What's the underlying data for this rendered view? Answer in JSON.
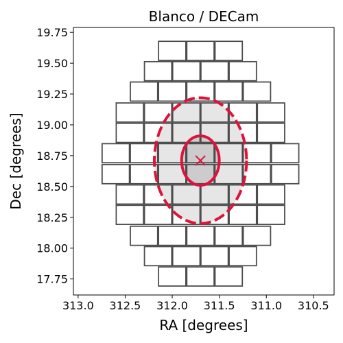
{
  "chart_data": {
    "type": "scatter",
    "title": "Blanco / DECam",
    "xlabel": "RA [degrees]",
    "ylabel": "Dec [degrees]",
    "xlim": [
      313.05,
      310.28
    ],
    "ylim": [
      17.62,
      19.79
    ],
    "x_ticks": [
      "313.0",
      "312.5",
      "312.0",
      "311.5",
      "311.0",
      "310.5"
    ],
    "x_tick_values": [
      313.0,
      312.5,
      312.0,
      311.5,
      311.0,
      310.5
    ],
    "y_ticks": [
      "17.75",
      "18.00",
      "18.25",
      "18.50",
      "18.75",
      "19.00",
      "19.25",
      "19.50",
      "19.75"
    ],
    "y_tick_values": [
      17.75,
      18.0,
      18.25,
      18.5,
      18.75,
      19.0,
      19.25,
      19.5,
      19.75
    ],
    "grid": false,
    "ccd_rows": [
      {
        "dec": 19.6,
        "ra_centers": [
          312.0,
          311.7,
          311.4
        ]
      },
      {
        "dec": 19.435,
        "ra_centers": [
          312.15,
          311.85,
          311.55,
          311.25
        ]
      },
      {
        "dec": 19.27,
        "ra_centers": [
          312.3,
          312.0,
          311.7,
          311.4,
          311.1
        ]
      },
      {
        "dec": 19.1,
        "ra_centers": [
          312.45,
          312.15,
          311.85,
          311.55,
          311.25,
          310.95
        ]
      },
      {
        "dec": 18.935,
        "ra_centers": [
          312.45,
          312.15,
          311.85,
          311.55,
          311.25,
          310.95
        ]
      },
      {
        "dec": 18.77,
        "ra_centers": [
          312.6,
          312.3,
          312.0,
          311.7,
          311.4,
          311.1,
          310.8
        ]
      },
      {
        "dec": 18.6,
        "ra_centers": [
          312.6,
          312.3,
          312.0,
          311.7,
          311.4,
          311.1,
          310.8
        ]
      },
      {
        "dec": 18.435,
        "ra_centers": [
          312.45,
          312.15,
          311.85,
          311.55,
          311.25,
          310.95
        ]
      },
      {
        "dec": 18.27,
        "ra_centers": [
          312.45,
          312.15,
          311.85,
          311.55,
          311.25,
          310.95
        ]
      },
      {
        "dec": 18.1,
        "ra_centers": [
          312.3,
          312.0,
          311.7,
          311.4,
          311.1
        ]
      },
      {
        "dec": 17.935,
        "ra_centers": [
          312.15,
          311.85,
          311.55,
          311.25
        ]
      },
      {
        "dec": 17.77,
        "ra_centers": [
          312.0,
          311.7,
          311.4
        ]
      }
    ],
    "ccd_size": {
      "ra": 0.29,
      "dec": 0.155
    },
    "target": {
      "ra": 311.7,
      "dec": 18.71
    },
    "inner_ellipse": {
      "ra": 311.7,
      "dec": 18.71,
      "ra_semi": 0.2,
      "dec_semi": 0.2
    },
    "outer_ellipse": {
      "ra": 311.7,
      "dec": 18.71,
      "ra_semi": 0.49,
      "dec_semi": 0.51
    },
    "colors": {
      "marker": "#dc143c",
      "ccd_edge": "#4d4d4d",
      "inner_fill": "#cccccc",
      "outer_fill": "#e6e6e6"
    }
  }
}
